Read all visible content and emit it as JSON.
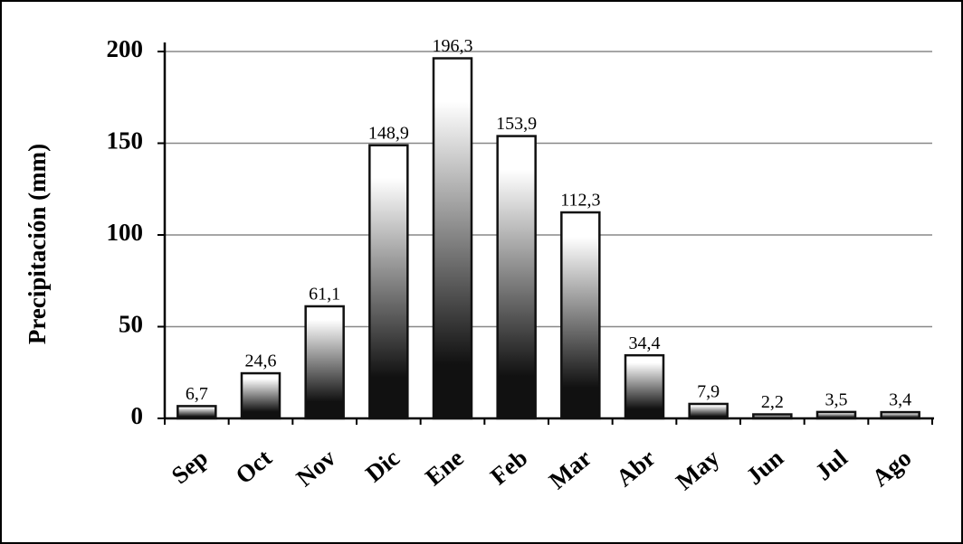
{
  "chart_data": {
    "type": "bar",
    "y_label": "Precipitación (mm)",
    "categories": [
      "Sep",
      "Oct",
      "Nov",
      "Dic",
      "Ene",
      "Feb",
      "Mar",
      "Abr",
      "May",
      "Jun",
      "Jul",
      "Ago"
    ],
    "values": [
      6.7,
      24.6,
      61.1,
      148.9,
      196.3,
      153.9,
      112.3,
      34.4,
      7.9,
      2.2,
      3.5,
      3.4
    ],
    "value_labels": [
      "6,7",
      "24,6",
      "61,1",
      "148,9",
      "196,3",
      "153,9",
      "112,3",
      "34,4",
      "7,9",
      "2,2",
      "3,5",
      "3,4"
    ],
    "color": "#111111",
    "ylim": [
      0,
      200
    ],
    "yticks": [
      0,
      50,
      100,
      150,
      200
    ],
    "grid": true
  }
}
